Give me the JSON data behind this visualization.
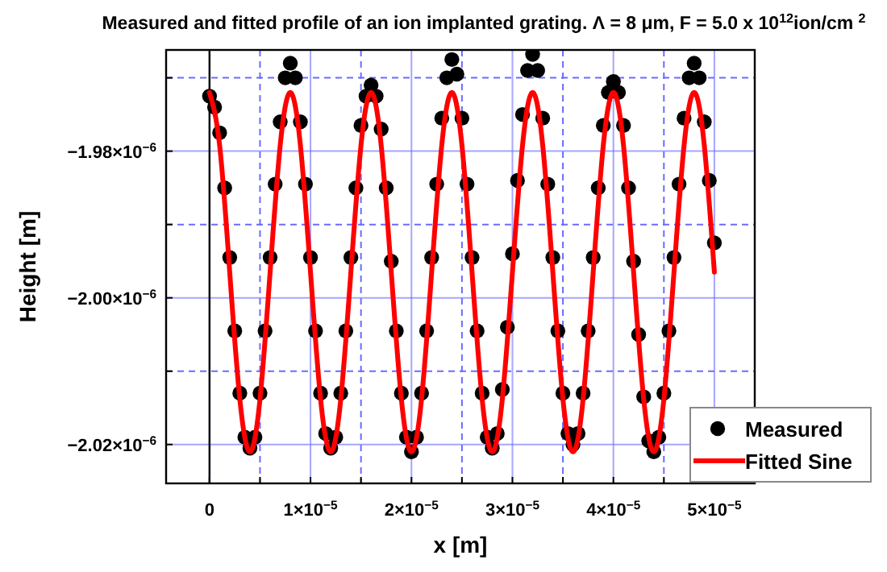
{
  "chart_data": {
    "type": "scatter",
    "title": "Measured and fitted profile of an ion implanted grating. Λ = 8 μm, F = 5.0 x 10$^{12}$ion/cm $^{2}$",
    "xlabel": "x [m]",
    "ylabel": "Height [m]",
    "xlim": [
      -4.3e-06,
      5.4e-05
    ],
    "ylim": [
      -2.0253e-06,
      -1.9662e-06
    ],
    "xticks": [
      {
        "value": 0,
        "label": "0"
      },
      {
        "value": 5e-06,
        "label": null
      },
      {
        "value": 1e-05,
        "label": "1×10$^{−5}$"
      },
      {
        "value": 1.5e-05,
        "label": null
      },
      {
        "value": 2e-05,
        "label": "2×10$^{−5}$"
      },
      {
        "value": 2.5e-05,
        "label": null
      },
      {
        "value": 3e-05,
        "label": "3×10$^{−5}$"
      },
      {
        "value": 3.5e-05,
        "label": null
      },
      {
        "value": 4e-05,
        "label": "4×10$^{−5}$"
      },
      {
        "value": 4.5e-05,
        "label": null
      },
      {
        "value": 5e-05,
        "label": "5×10$^{−5}$"
      }
    ],
    "yticks": [
      {
        "value": -1.97e-06,
        "label": null
      },
      {
        "value": -1.98e-06,
        "label": "−1.98×10$^{−6}$"
      },
      {
        "value": -1.99e-06,
        "label": null
      },
      {
        "value": -2e-06,
        "label": "−2.00×10$^{−6}$"
      },
      {
        "value": -2.01e-06,
        "label": null
      },
      {
        "value": -2.02e-06,
        "label": "−2.02×10$^{−6}$"
      }
    ],
    "grid": true,
    "legend": "bottom right",
    "ref_lines": [
      {
        "axis": "x",
        "value": 0,
        "color": "#000000"
      }
    ],
    "series": [
      {
        "name": "Measured",
        "color": "#000000",
        "marker": "circle",
        "x": [
          0,
          5e-07,
          1e-06,
          1.5e-06,
          2e-06,
          2.5e-06,
          3e-06,
          3.5e-06,
          4e-06,
          4.5e-06,
          5e-06,
          5.5e-06,
          6e-06,
          6.5e-06,
          7e-06,
          7.5e-06,
          8e-06,
          8.5e-06,
          9e-06,
          9.5e-06,
          1e-05,
          1.05e-05,
          1.1e-05,
          1.15e-05,
          1.2e-05,
          1.25e-05,
          1.3e-05,
          1.35e-05,
          1.4e-05,
          1.45e-05,
          1.5e-05,
          1.55e-05,
          1.6e-05,
          1.65e-05,
          1.7e-05,
          1.75e-05,
          1.8e-05,
          1.85e-05,
          1.9e-05,
          1.95e-05,
          2e-05,
          2.05e-05,
          2.1e-05,
          2.15e-05,
          2.2e-05,
          2.25e-05,
          2.3e-05,
          2.35e-05,
          2.4e-05,
          2.45e-05,
          2.5e-05,
          2.55e-05,
          2.6e-05,
          2.65e-05,
          2.7e-05,
          2.75e-05,
          2.8e-05,
          2.85e-05,
          2.9e-05,
          2.95e-05,
          3e-05,
          3.05e-05,
          3.1e-05,
          3.15e-05,
          3.2e-05,
          3.25e-05,
          3.3e-05,
          3.35e-05,
          3.4e-05,
          3.45e-05,
          3.5e-05,
          3.55e-05,
          3.6e-05,
          3.65e-05,
          3.7e-05,
          3.75e-05,
          3.8e-05,
          3.85e-05,
          3.9e-05,
          3.95e-05,
          4e-05,
          4.05e-05,
          4.1e-05,
          4.15e-05,
          4.2e-05,
          4.25e-05,
          4.3e-05,
          4.35e-05,
          4.4e-05,
          4.45e-05,
          4.5e-05,
          4.55e-05,
          4.6e-05,
          4.65e-05,
          4.7e-05,
          4.75e-05,
          4.8e-05,
          4.85e-05,
          4.9e-05,
          4.95e-05,
          5e-05
        ],
        "values": [
          -1.9725e-06,
          -1.974e-06,
          -1.9775e-06,
          -1.985e-06,
          -1.9945e-06,
          -2.0045e-06,
          -2.013e-06,
          -2.019e-06,
          -2.0205e-06,
          -2.019e-06,
          -2.013e-06,
          -2.0045e-06,
          -1.9945e-06,
          -1.9845e-06,
          -1.976e-06,
          -1.97e-06,
          -1.968e-06,
          -1.97e-06,
          -1.976e-06,
          -1.9845e-06,
          -1.9945e-06,
          -2.0045e-06,
          -2.013e-06,
          -2.0185e-06,
          -2.0205e-06,
          -2.019e-06,
          -2.013e-06,
          -2.0045e-06,
          -1.9945e-06,
          -1.985e-06,
          -1.9765e-06,
          -1.9725e-06,
          -1.971e-06,
          -1.9725e-06,
          -1.977e-06,
          -1.985e-06,
          -1.995e-06,
          -2.0045e-06,
          -2.013e-06,
          -2.019e-06,
          -2.021e-06,
          -2.019e-06,
          -2.013e-06,
          -2.0045e-06,
          -1.9945e-06,
          -1.9845e-06,
          -1.9755e-06,
          -1.97e-06,
          -1.9675e-06,
          -1.9695e-06,
          -1.9755e-06,
          -1.9845e-06,
          -1.9945e-06,
          -2.0045e-06,
          -2.013e-06,
          -2.019e-06,
          -2.0205e-06,
          -2.0185e-06,
          -2.0125e-06,
          -2.004e-06,
          -1.994e-06,
          -1.984e-06,
          -1.975e-06,
          -1.969e-06,
          -1.9668e-06,
          -1.969e-06,
          -1.9755e-06,
          -1.9845e-06,
          -1.9945e-06,
          -2.0045e-06,
          -2.013e-06,
          -2.0185e-06,
          -2.02e-06,
          -2.0185e-06,
          -2.013e-06,
          -2.0045e-06,
          -1.9945e-06,
          -1.985e-06,
          -1.9765e-06,
          -1.972e-06,
          -1.9705e-06,
          -1.972e-06,
          -1.9765e-06,
          -1.985e-06,
          -1.995e-06,
          -2.005e-06,
          -2.0135e-06,
          -2.0195e-06,
          -2.021e-06,
          -2.019e-06,
          -2.013e-06,
          -2.0045e-06,
          -1.9945e-06,
          -1.9845e-06,
          -1.9755e-06,
          -1.97e-06,
          -1.968e-06,
          -1.97e-06,
          -1.976e-06,
          -1.984e-06,
          -1.9925e-06
        ]
      },
      {
        "name": "Fitted Sine",
        "type": "line",
        "color": "#ff0000",
        "marker": "none",
        "line_style": "solid",
        "x": [
          0,
          1e-06,
          2e-06,
          3e-06,
          4e-06,
          5e-06,
          6e-06,
          7e-06,
          8e-06,
          9e-06,
          1e-05,
          1.1e-05,
          1.2e-05,
          1.3e-05,
          1.4e-05,
          1.5e-05,
          1.6e-05,
          1.7e-05,
          1.8e-05,
          1.9e-05,
          2e-05,
          2.1e-05,
          2.2e-05,
          2.3e-05,
          2.4e-05,
          2.5e-05,
          2.6e-05,
          2.7e-05,
          2.8e-05,
          2.9e-05,
          3e-05,
          3.1e-05,
          3.2e-05,
          3.3e-05,
          3.4e-05,
          3.5e-05,
          3.6e-05,
          3.7e-05,
          3.8e-05,
          3.9e-05,
          4e-05,
          4.1e-05,
          4.2e-05,
          4.3e-05,
          4.4e-05,
          4.5e-05,
          4.6e-05,
          4.7e-05,
          4.8e-05,
          4.9e-05,
          5e-05
        ],
        "values": [
          -1.972e-06,
          -1.9792e-06,
          -1.9965e-06,
          -2.0138e-06,
          -2.021e-06,
          -2.0138e-06,
          -1.9965e-06,
          -1.9792e-06,
          -1.972e-06,
          -1.9792e-06,
          -1.9965e-06,
          -2.0138e-06,
          -2.021e-06,
          -2.0138e-06,
          -1.9965e-06,
          -1.9792e-06,
          -1.972e-06,
          -1.9792e-06,
          -1.9965e-06,
          -2.0138e-06,
          -2.021e-06,
          -2.0138e-06,
          -1.9965e-06,
          -1.9792e-06,
          -1.972e-06,
          -1.9792e-06,
          -1.9965e-06,
          -2.0138e-06,
          -2.021e-06,
          -2.0138e-06,
          -1.9965e-06,
          -1.9792e-06,
          -1.972e-06,
          -1.9792e-06,
          -1.9965e-06,
          -2.0138e-06,
          -2.021e-06,
          -2.0138e-06,
          -1.9965e-06,
          -1.9792e-06,
          -1.972e-06,
          -1.9792e-06,
          -1.9965e-06,
          -2.0138e-06,
          -2.021e-06,
          -2.0138e-06,
          -1.9965e-06,
          -1.9792e-06,
          -1.972e-06,
          -1.9792e-06,
          -1.9965e-06
        ]
      }
    ]
  }
}
